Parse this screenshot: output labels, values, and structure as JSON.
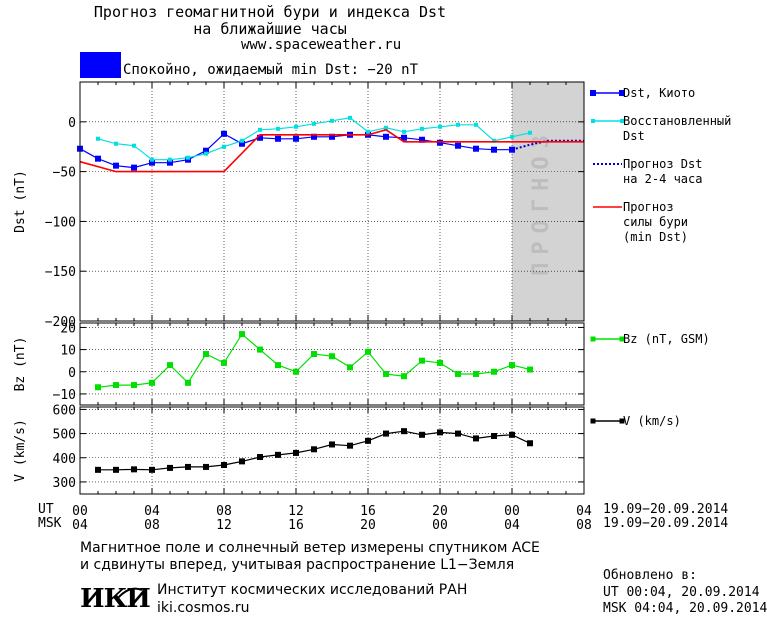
{
  "header": {
    "title_line1": "Прогноз геомагнитной бури и индекса Dst",
    "title_line2": "на ближайшие часы",
    "website": "www.spaceweather.ru",
    "status_text": "Спокойно, ожидаемый min Dst: −20 nT",
    "status_color": "#0000ff"
  },
  "chart_data": [
    {
      "type": "line",
      "ylabel": "Dst (nT)",
      "ylim": [
        -200,
        40
      ],
      "yticks": [
        "0",
        "−50",
        "−100",
        "−150",
        "−200"
      ],
      "forecast_band_label": "ПРОГНОЗ",
      "series": [
        {
          "name": "Dst, Киото",
          "color": "#0000ff",
          "marker": "square",
          "x": [
            0,
            1,
            2,
            3,
            4,
            5,
            6,
            7,
            8,
            9,
            10,
            11,
            12,
            13,
            14,
            15,
            16,
            17,
            18,
            19,
            20,
            21,
            22,
            23,
            24
          ],
          "y": [
            -27,
            -37,
            -44,
            -46,
            -41,
            -41,
            -38,
            -29,
            -12,
            -22,
            -16,
            -17,
            -17,
            -15,
            -15,
            -13,
            -13,
            -15,
            -16,
            -18,
            -21,
            -24,
            -27,
            -28,
            -28
          ]
        },
        {
          "name": "Восстановленный Dst",
          "color": "#00e0e0",
          "marker": "square",
          "x": [
            1,
            2,
            3,
            4,
            5,
            6,
            7,
            8,
            9,
            10,
            11,
            12,
            13,
            14,
            15,
            16,
            17,
            18,
            19,
            20,
            21,
            22,
            23,
            24,
            25
          ],
          "y": [
            -17,
            -22,
            -24,
            -38,
            -38,
            -36,
            -32,
            -25,
            -19,
            -8,
            -7,
            -5,
            -2,
            1,
            4,
            -10,
            -6,
            -10,
            -7,
            -5,
            -3,
            -3,
            -19,
            -15,
            -11
          ]
        },
        {
          "name": "Прогноз Dst на 2-4 часа",
          "color": "#0000cc",
          "style": "dotted",
          "x": [
            24,
            25,
            26,
            27,
            28
          ],
          "y": [
            -28,
            -23,
            -19,
            -19,
            -19
          ]
        },
        {
          "name": "Прогноз силы бури (min Dst)",
          "color": "#ff0000",
          "x": [
            0,
            2,
            8,
            10,
            16,
            17,
            18,
            20,
            24,
            28
          ],
          "y": [
            -40,
            -50,
            -50,
            -13,
            -13,
            -8,
            -20,
            -20,
            -20,
            -20
          ]
        }
      ]
    },
    {
      "type": "line",
      "ylabel": "Bz (nT)",
      "ylim": [
        -15,
        22
      ],
      "yticks": [
        "20",
        "10",
        "0",
        "−10"
      ],
      "series": [
        {
          "name": "Bz (nT, GSM)",
          "color": "#00e000",
          "marker": "square",
          "x": [
            1,
            2,
            3,
            4,
            5,
            6,
            7,
            8,
            9,
            10,
            11,
            12,
            13,
            14,
            15,
            16,
            17,
            18,
            19,
            20,
            21,
            22,
            23,
            24,
            25
          ],
          "y": [
            -7,
            -6,
            -6,
            -5,
            3,
            -5,
            8,
            4,
            17,
            10,
            3,
            0,
            8,
            7,
            2,
            9,
            -1,
            -2,
            5,
            4,
            -1,
            -1,
            0,
            3,
            1
          ]
        }
      ]
    },
    {
      "type": "line",
      "ylabel": "V (km/s)",
      "ylim": [
        250,
        610
      ],
      "yticks": [
        "600",
        "500",
        "400",
        "300"
      ],
      "series": [
        {
          "name": "V (km/s)",
          "color": "#000000",
          "marker": "square",
          "x": [
            1,
            2,
            3,
            4,
            5,
            6,
            7,
            8,
            9,
            10,
            11,
            12,
            13,
            14,
            15,
            16,
            17,
            18,
            19,
            20,
            21,
            22,
            23,
            24,
            25
          ],
          "y": [
            350,
            350,
            352,
            350,
            358,
            362,
            362,
            370,
            385,
            403,
            412,
            420,
            435,
            455,
            450,
            470,
            500,
            510,
            495,
            505,
            500,
            480,
            490,
            495,
            460
          ]
        }
      ]
    }
  ],
  "x_axis": {
    "ut_label": "UT",
    "msk_label": "MSK",
    "ut_ticks": [
      "00",
      "04",
      "08",
      "12",
      "16",
      "20",
      "00",
      "04"
    ],
    "msk_ticks": [
      "04",
      "08",
      "12",
      "16",
      "20",
      "00",
      "04",
      "08"
    ],
    "date_range": "19.09−20.09.2014"
  },
  "legend": {
    "dst_kyoto": "Dst, Киото",
    "dst_restored": "Восстановленный\nDst",
    "dst_forecast": "Прогноз Dst\nна 2-4 часа",
    "storm_forecast": "Прогноз\nсилы бури\n(min Dst)",
    "bz": "Bz (nT, GSM)",
    "v": "V (km/s)"
  },
  "footer": {
    "note_line1": "Магнитное поле и солнечный ветер измерены спутником ACE",
    "note_line2": "и сдвинуты вперед, учитывая распространение L1−Земля",
    "logo_text": "ИКИ",
    "institute": "Институт космических исследований РАН",
    "institute_site": "iki.cosmos.ru",
    "updated_label": "Обновлено в:",
    "updated_ut": "UT  00:04, 20.09.2014",
    "updated_msk": "MSK 04:04, 20.09.2014"
  }
}
